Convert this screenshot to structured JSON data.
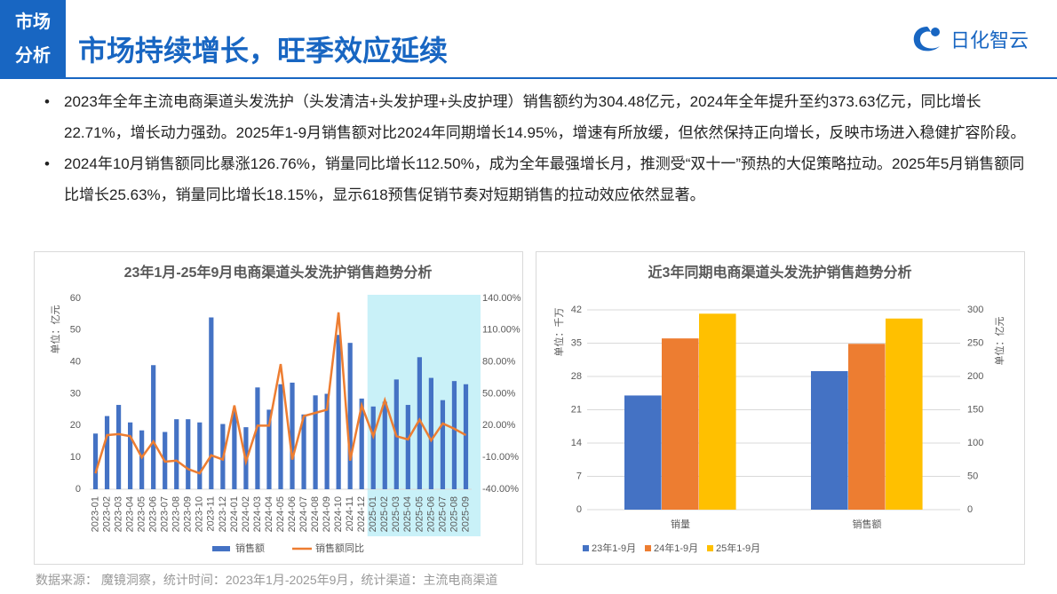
{
  "header": {
    "tag": [
      "市场",
      "分析"
    ],
    "title": "市场持续增长，旺季效应延续",
    "logo": "日化智云"
  },
  "bullets": [
    "2023年全年主流电商渠道头发洗护（头发清洁+头发护理+头皮护理）销售额约为304.48亿元，2024年全年提升至约373.63亿元，同比增长22.71%，增长动力强劲。2025年1-9月销售额对比2024年同期增长14.95%，增速有所放缓，但依然保持正向增长，反映市场进入稳健扩容阶段。",
    "2024年10月销售额同比暴涨126.76%，销量同比增长112.50%，成为全年最强增长月，推测受“双十一”预热的大促策略拉动。2025年5月销售额同比增长25.63%，销量同比增长18.15%，显示618预售促销节奏对短期销售的拉动效应依然显著。"
  ],
  "chart_data": [
    {
      "type": "combo",
      "title": "23年1月-25年9月电商渠道头发洗护销售趋势分析",
      "y_label": "单位：亿元",
      "categories": [
        "2023-01",
        "2023-02",
        "2023-03",
        "2023-04",
        "2023-05",
        "2023-06",
        "2023-07",
        "2023-08",
        "2023-09",
        "2023-10",
        "2023-11",
        "2023-12",
        "2024-01",
        "2024-02",
        "2024-03",
        "2024-04",
        "2024-05",
        "2024-06",
        "2024-07",
        "2024-08",
        "2024-09",
        "2024-10",
        "2024-11",
        "2024-12",
        "2025-01",
        "2025-02",
        "2025-03",
        "2025-04",
        "2025-05",
        "2025-06",
        "2025-07",
        "2025-08",
        "2025-09"
      ],
      "series": [
        {
          "name": "销售额",
          "type": "bar",
          "color": "#4472c4",
          "values": [
            17.5,
            23,
            26.5,
            21,
            18.5,
            39,
            18,
            22,
            22,
            21,
            54,
            20.5,
            24.5,
            19.5,
            32,
            25,
            33,
            33.5,
            23.5,
            29.5,
            30,
            48.5,
            46,
            28.5,
            26,
            27.5,
            34.5,
            26.5,
            41.5,
            35,
            28,
            34,
            33
          ]
        },
        {
          "name": "销售额同比",
          "type": "line",
          "axis": "y2",
          "color": "#ed7d31",
          "values": [
            -25,
            11,
            12,
            10,
            -10,
            5,
            -14,
            -13,
            -21,
            -25,
            -8,
            -12,
            39,
            -14,
            20,
            20,
            78,
            -12,
            29,
            32,
            35,
            126.76,
            -13,
            39,
            10,
            44,
            10,
            7,
            25.63,
            6,
            22,
            17,
            11
          ]
        }
      ],
      "ylim": [
        0,
        60
      ],
      "yticks": [
        0,
        10,
        20,
        30,
        40,
        50,
        60
      ],
      "y2lim": [
        -40,
        140
      ],
      "y2ticks": [
        {
          "value": -40,
          "label": "-40.00%"
        },
        {
          "value": -10,
          "label": "-10.00%"
        },
        {
          "value": 20,
          "label": "20.00%"
        },
        {
          "value": 50,
          "label": "50.00%"
        },
        {
          "value": 80,
          "label": "80.00%"
        },
        {
          "value": 110,
          "label": "110.00%"
        },
        {
          "value": 140,
          "label": "140.00%"
        }
      ],
      "highlight": {
        "start": "2025-01",
        "end": "2025-09",
        "color": "#c9f1f8"
      },
      "legend": "bottom"
    },
    {
      "type": "bar",
      "title": "近3年同期电商渠道头发洗护销售趋势分析",
      "y_label": "单位：千万",
      "y2_label": "单位：亿元",
      "categories": [
        "销量",
        "销售额"
      ],
      "category_axes": [
        "y",
        "y2"
      ],
      "series": [
        {
          "name": "23年1-9月",
          "color": "#4472c4",
          "values": [
            24,
            208
          ]
        },
        {
          "name": "24年1-9月",
          "color": "#ed7d31",
          "values": [
            36,
            249
          ]
        },
        {
          "name": "25年1-9月",
          "color": "#ffc000",
          "values": [
            41.2,
            287
          ]
        }
      ],
      "ylim": [
        0,
        42
      ],
      "yticks": [
        0,
        7,
        14,
        21,
        28,
        35,
        42
      ],
      "y2lim": [
        0,
        300
      ],
      "y2ticks": [
        0,
        50,
        100,
        150,
        200,
        250,
        300
      ],
      "grid": true,
      "legend": "bottom-left"
    }
  ],
  "footer": "数据来源： 魔镜洞察，统计时间：2023年1月-2025年9月，统计渠道：主流电商渠道"
}
